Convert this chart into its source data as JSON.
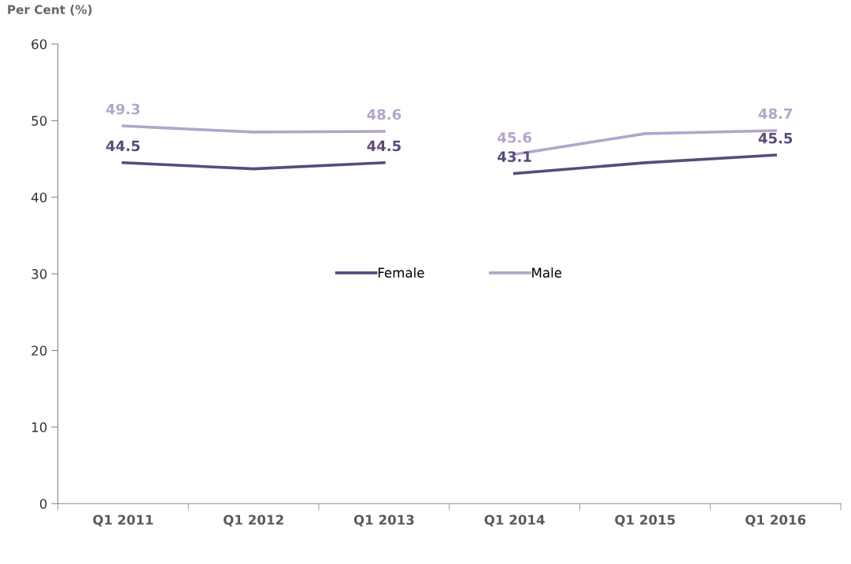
{
  "chart_data": {
    "type": "line",
    "ylabel": "Per Cent (%)",
    "categories": [
      "Q1 2011",
      "Q1 2012",
      "Q1 2013",
      "Q1 2014",
      "Q1 2015",
      "Q1 2016"
    ],
    "series": [
      {
        "name": "Female",
        "color": "#5b4a7b",
        "values": [
          44.5,
          43.7,
          44.5,
          null,
          null,
          null
        ],
        "value_labels": [
          "44.5",
          null,
          "44.5",
          null,
          null,
          null
        ]
      },
      {
        "name": "Male",
        "color": "#b4a5cb",
        "values": [
          49.3,
          48.5,
          48.6,
          null,
          null,
          null
        ],
        "value_labels": [
          "49.3",
          null,
          "48.6",
          null,
          null,
          null
        ]
      },
      {
        "color": "#5b4a7b",
        "values": [
          null,
          null,
          null,
          43.1,
          44.5,
          45.5
        ],
        "value_labels": [
          null,
          null,
          null,
          "43.1",
          null,
          "45.5"
        ]
      },
      {
        "color": "#b4a5cb",
        "values": [
          null,
          null,
          null,
          45.6,
          48.3,
          48.7
        ],
        "value_labels": [
          null,
          null,
          null,
          "45.6",
          null,
          "48.7"
        ]
      }
    ],
    "ylim": [
      0,
      60
    ],
    "yticks": [
      0,
      10,
      20,
      30,
      40,
      50,
      60
    ],
    "grid": false,
    "legend": "center",
    "marker": "none",
    "line_style": "solid"
  }
}
